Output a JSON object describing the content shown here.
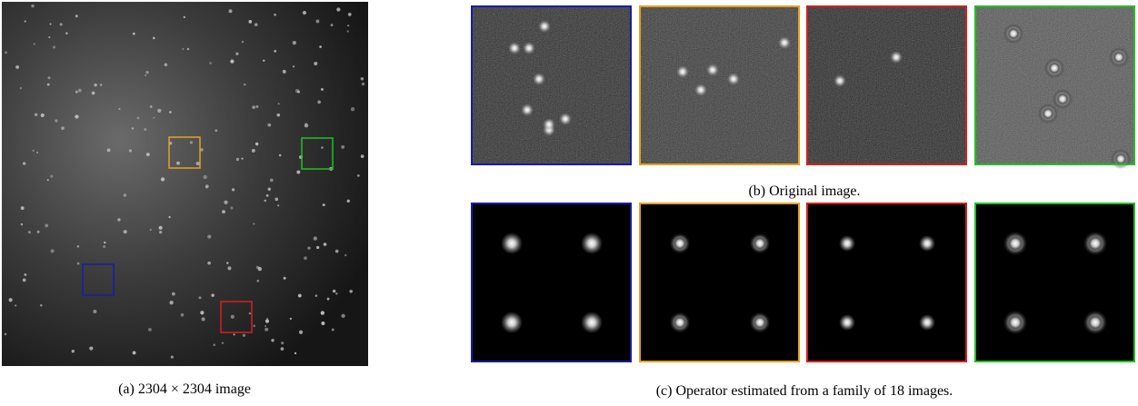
{
  "figure": {
    "caption_a": "(a) 2304 × 2304 image",
    "caption_b": "(b) Original image.",
    "caption_c": "(c) Operator estimated from a family of 18 images."
  }
}
